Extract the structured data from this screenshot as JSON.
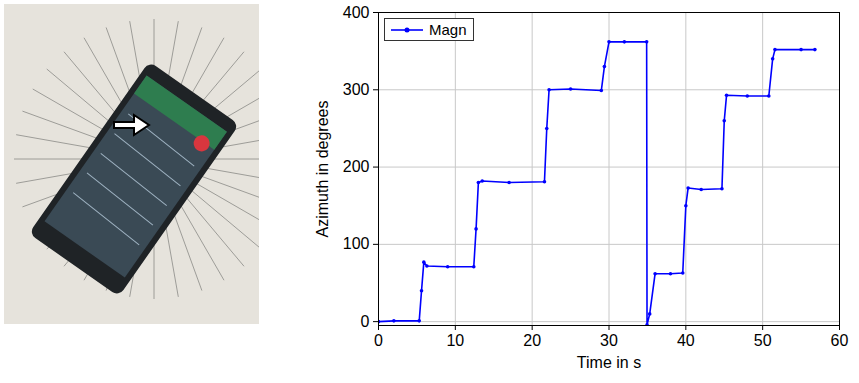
{
  "chart_data": {
    "type": "line",
    "xlabel": "Time in s",
    "ylabel": "Azimuth in degrees",
    "xlim": [
      0,
      60
    ],
    "xticks": [
      0,
      10,
      20,
      30,
      40,
      50,
      60
    ],
    "ylim": [
      -5,
      400
    ],
    "yticks": [
      0,
      100,
      200,
      300,
      400
    ],
    "grid": true,
    "legend": "northwest",
    "x": [
      0,
      2,
      5.3,
      5.6,
      5.9,
      6.3,
      9,
      12.4,
      12.7,
      13.0,
      13.5,
      17,
      21.6,
      21.9,
      22.2,
      25,
      29.0,
      29.4,
      30,
      32,
      34.9,
      34.95,
      35.3,
      36,
      38,
      39.6,
      40,
      40.3,
      42,
      44.7,
      45,
      45.3,
      48,
      50.8,
      51.3,
      51.6,
      55,
      56.8
    ],
    "series": [
      {
        "name": "Magn",
        "color": "#0000ff",
        "marker": "dot",
        "line_style": "solid",
        "values": [
          0,
          1,
          1,
          40,
          77,
          72,
          71,
          71,
          120,
          180,
          182,
          180,
          181,
          250,
          300,
          301,
          299,
          330,
          362,
          362,
          362,
          -4,
          10,
          62,
          62,
          63,
          150,
          173,
          171,
          172,
          260,
          293,
          292,
          292,
          340,
          352,
          352,
          352
        ]
      }
    ]
  }
}
